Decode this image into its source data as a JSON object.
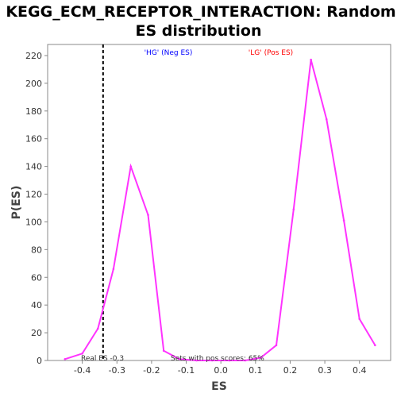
{
  "chart_data": {
    "type": "line",
    "title_line1": "KEGG_ECM_RECEPTOR_INTERACTION: Random",
    "title_line2": "ES distribution",
    "xlabel": "ES",
    "ylabel": "P(ES)",
    "xlim": [
      -0.5,
      0.49
    ],
    "ylim": [
      0,
      228
    ],
    "x_ticks": [
      -0.4,
      -0.3,
      -0.2,
      -0.1,
      0.0,
      0.1,
      0.2,
      0.3,
      0.4
    ],
    "x_tick_labels": [
      "-0.4",
      "-0.3",
      "-0.2",
      "-0.1",
      "0.0",
      "0.1",
      "0.2",
      "0.3",
      "0.4"
    ],
    "y_ticks": [
      0,
      20,
      40,
      60,
      80,
      100,
      120,
      140,
      160,
      180,
      200,
      220
    ],
    "y_tick_labels": [
      "0",
      "20",
      "40",
      "60",
      "80",
      "100",
      "120",
      "140",
      "160",
      "180",
      "200",
      "220"
    ],
    "grid": false,
    "series": [
      {
        "color": "#ff33ff",
        "x": [
          -0.45,
          -0.4,
          -0.355,
          -0.31,
          -0.26,
          -0.21,
          -0.165,
          -0.12,
          -0.07,
          -0.025,
          0.025,
          0.07,
          0.115,
          0.16,
          0.21,
          0.26,
          0.305,
          0.355,
          0.4,
          0.445
        ],
        "y": [
          1,
          5,
          23,
          66,
          140,
          105,
          7,
          1,
          0,
          0,
          0,
          0,
          2,
          11,
          109,
          217,
          174,
          101,
          30,
          11
        ]
      }
    ],
    "real_es": -0.34,
    "real_es_label": "Real ES -0.3",
    "annotation_pos": "Sets with pos scores: 65%",
    "legend_hg": "'HG' (Neg ES)",
    "legend_lg": "'LG' (Pos ES)",
    "colors": {
      "line": "#ff33ff",
      "real_es_line": "#000000",
      "hg": "#0000ff",
      "lg": "#ff0000",
      "axis": "#888888"
    }
  }
}
